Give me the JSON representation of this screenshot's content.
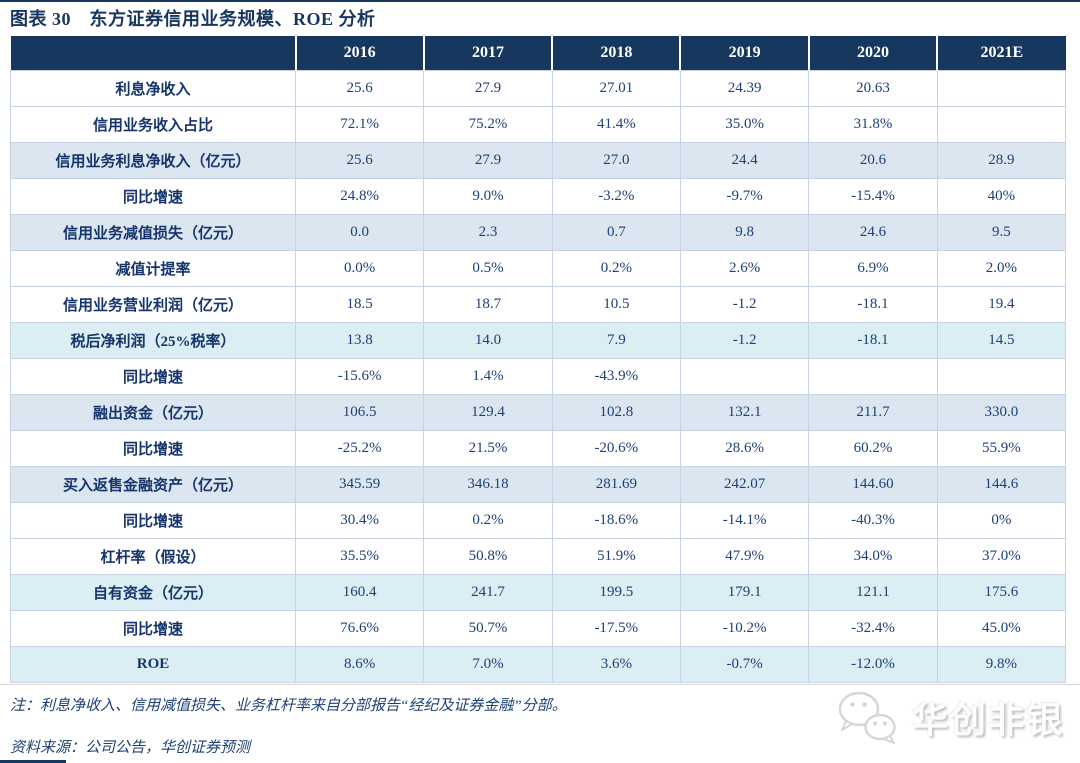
{
  "title": "图表 30　东方证券信用业务规模、ROE 分析",
  "colors": {
    "header_bg": "#17375e",
    "row_shade_blue": "#dce6f1",
    "row_shade_cyan": "#daeef3",
    "text_navy": "#17365d",
    "cell_border": "#c6d3e4"
  },
  "table": {
    "columns": [
      "",
      "2016",
      "2017",
      "2018",
      "2019",
      "2020",
      "2021E"
    ],
    "rows": [
      {
        "label": "利息净收入",
        "values": [
          "25.6",
          "27.9",
          "27.01",
          "24.39",
          "20.63",
          ""
        ],
        "shade": "white"
      },
      {
        "label": "信用业务收入占比",
        "values": [
          "72.1%",
          "75.2%",
          "41.4%",
          "35.0%",
          "31.8%",
          ""
        ],
        "shade": "white"
      },
      {
        "label": "信用业务利息净收入（亿元）",
        "values": [
          "25.6",
          "27.9",
          "27.0",
          "24.4",
          "20.6",
          "28.9"
        ],
        "shade": "blue"
      },
      {
        "label": "同比增速",
        "values": [
          "24.8%",
          "9.0%",
          "-3.2%",
          "-9.7%",
          "-15.4%",
          "40%"
        ],
        "shade": "white"
      },
      {
        "label": "信用业务减值损失（亿元）",
        "values": [
          "0.0",
          "2.3",
          "0.7",
          "9.8",
          "24.6",
          "9.5"
        ],
        "shade": "blue"
      },
      {
        "label": "减值计提率",
        "values": [
          "0.0%",
          "0.5%",
          "0.2%",
          "2.6%",
          "6.9%",
          "2.0%"
        ],
        "shade": "white"
      },
      {
        "label": "信用业务营业利润（亿元）",
        "values": [
          "18.5",
          "18.7",
          "10.5",
          "-1.2",
          "-18.1",
          "19.4"
        ],
        "shade": "white"
      },
      {
        "label": "税后净利润（25%税率）",
        "values": [
          "13.8",
          "14.0",
          "7.9",
          "-1.2",
          "-18.1",
          "14.5"
        ],
        "shade": "cyan"
      },
      {
        "label": "同比增速",
        "values": [
          "-15.6%",
          "1.4%",
          "-43.9%",
          "",
          "",
          ""
        ],
        "shade": "white"
      },
      {
        "label": "融出资金（亿元）",
        "values": [
          "106.5",
          "129.4",
          "102.8",
          "132.1",
          "211.7",
          "330.0"
        ],
        "shade": "blue"
      },
      {
        "label": "同比增速",
        "values": [
          "-25.2%",
          "21.5%",
          "-20.6%",
          "28.6%",
          "60.2%",
          "55.9%"
        ],
        "shade": "white"
      },
      {
        "label": "买入返售金融资产（亿元）",
        "values": [
          "345.59",
          "346.18",
          "281.69",
          "242.07",
          "144.60",
          "144.6"
        ],
        "shade": "blue"
      },
      {
        "label": "同比增速",
        "values": [
          "30.4%",
          "0.2%",
          "-18.6%",
          "-14.1%",
          "-40.3%",
          "0%"
        ],
        "shade": "white"
      },
      {
        "label": "杠杆率（假设）",
        "values": [
          "35.5%",
          "50.8%",
          "51.9%",
          "47.9%",
          "34.0%",
          "37.0%"
        ],
        "shade": "white"
      },
      {
        "label": "自有资金（亿元）",
        "values": [
          "160.4",
          "241.7",
          "199.5",
          "179.1",
          "121.1",
          "175.6"
        ],
        "shade": "cyan"
      },
      {
        "label": "同比增速",
        "values": [
          "76.6%",
          "50.7%",
          "-17.5%",
          "-10.2%",
          "-32.4%",
          "45.0%"
        ],
        "shade": "white"
      },
      {
        "label": "ROE",
        "values": [
          "8.6%",
          "7.0%",
          "3.6%",
          "-0.7%",
          "-12.0%",
          "9.8%"
        ],
        "shade": "cyan"
      }
    ]
  },
  "notes": {
    "note": "注：利息净收入、信用减值损失、业务杠杆率来自分部报告“经纪及证券金融”分部。",
    "source": "资料来源：公司公告，华创证券预测"
  },
  "watermark": {
    "text": "华创非银",
    "icon": "wechat-chat-bubbles-icon"
  }
}
